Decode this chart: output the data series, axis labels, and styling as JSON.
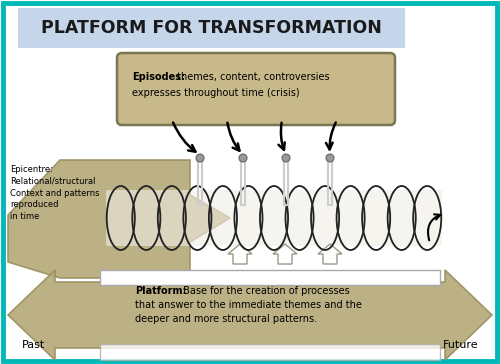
{
  "title": "PLATFORM FOR TRANSFORMATION",
  "title_bg": "#c5d5ea",
  "outer_border_color": "#00b8b8",
  "bg_color": "#ffffff",
  "episodes_box_bg": "#c8b98a",
  "episodes_text_bold": "Episodes:",
  "episodes_text": " themes, content, controversies\nexpresses throughout time (crisis)",
  "epicentre_text": "Epicentre:\nRelational/structural\nContext and patterns\nreproduced\nin time",
  "platform_text_bold": "Platform:",
  "platform_text": " Base for the creation of processes\nthat answer to the immediate themes and the\ndeeper and more structural patterns.",
  "past_label": "Past",
  "future_label": "Future",
  "arrow_color": "#b5a878",
  "arrow_edge": "#9a9060",
  "coil_color": "#222222",
  "spike_color": "#aaaaaa",
  "spike_dot": "#888888",
  "up_arrow_fill": "#ddddcc",
  "up_arrow_edge": "#888877"
}
